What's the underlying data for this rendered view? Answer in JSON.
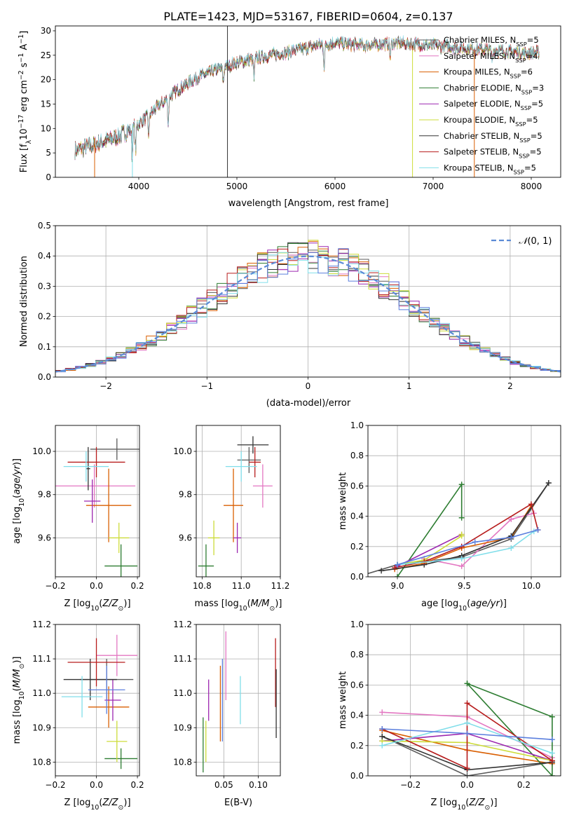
{
  "figure_title": "PLATE=1423, MJD=53167, FIBERID=0604, z=0.137",
  "colors": {
    "Chabrier MILES": "#5b5b5b",
    "Salpeter MILES": "#e377c2",
    "Kroupa MILES": "#d95f02",
    "Chabrier ELODIE": "#2e7d32",
    "Salpeter ELODIE": "#9c27b0",
    "Kroupa ELODIE": "#cddc39",
    "Chabrier STELIB": "#333333",
    "Salpeter STELIB": "#b71c1c",
    "Kroupa STELIB": "#80deea",
    "gauss": "#5b8bd6",
    "blue": "#5b7fde"
  },
  "legend_spectrum": [
    {
      "name": "Chabrier MILES",
      "nssp": "5"
    },
    {
      "name": "Salpeter MILES",
      "nssp": "4"
    },
    {
      "name": "Kroupa MILES",
      "nssp": "6"
    },
    {
      "name": "Chabrier ELODIE",
      "nssp": "3"
    },
    {
      "name": "Salpeter ELODIE",
      "nssp": "5"
    },
    {
      "name": "Kroupa ELODIE",
      "nssp": "5"
    },
    {
      "name": "Chabrier STELIB",
      "nssp": "5"
    },
    {
      "name": "Salpeter STELIB",
      "nssp": "5"
    },
    {
      "name": "Kroupa STELIB",
      "nssp": "5"
    }
  ],
  "chart_data": [
    {
      "id": "spectrum",
      "type": "line",
      "title": "PLATE=1423, MJD=53167, FIBERID=0604, z=0.137",
      "xlabel": "wavelength [Angstrom, rest frame]",
      "ylabel_main": "Flux [f",
      "ylabel_tail": "10",
      "xlim": [
        3150,
        8300
      ],
      "ylim": [
        0,
        31
      ],
      "xticks": [
        4000,
        5000,
        6000,
        7000,
        8000
      ],
      "yticks": [
        0,
        5,
        10,
        15,
        20,
        25,
        30
      ],
      "continuum": [
        [
          3350,
          5.5
        ],
        [
          3600,
          7.0
        ],
        [
          3800,
          8.5
        ],
        [
          4000,
          11.0
        ],
        [
          4200,
          14.5
        ],
        [
          4400,
          18.0
        ],
        [
          4600,
          20.5
        ],
        [
          4800,
          22.0
        ],
        [
          5000,
          23.5
        ],
        [
          5200,
          24.5
        ],
        [
          5500,
          25.5
        ],
        [
          5800,
          27.0
        ],
        [
          6000,
          27.5
        ],
        [
          6300,
          27.0
        ],
        [
          6600,
          27.5
        ],
        [
          7000,
          27.0
        ],
        [
          7300,
          26.5
        ],
        [
          7600,
          26.0
        ],
        [
          7900,
          25.5
        ],
        [
          8080,
          25.5
        ]
      ],
      "absorption_dips": [
        [
          3933,
          6
        ],
        [
          3968,
          5
        ],
        [
          4101,
          4
        ],
        [
          4300,
          5
        ],
        [
          4861,
          3
        ],
        [
          5175,
          4
        ],
        [
          5890,
          5
        ],
        [
          6563,
          3
        ],
        [
          7600,
          2
        ]
      ],
      "spikes": [
        [
          4904,
          0,
          31
        ],
        [
          6790,
          0,
          26
        ],
        [
          3935,
          0,
          11
        ],
        [
          7420,
          0,
          26
        ],
        [
          3550,
          0,
          8
        ]
      ]
    },
    {
      "id": "residuals",
      "type": "histogram",
      "xlabel": "(data-model)/error",
      "ylabel": "Normed distribution",
      "xlim": [
        -2.5,
        2.5
      ],
      "ylim": [
        0,
        0.5
      ],
      "xticks": [
        -2,
        -1,
        0,
        1,
        2
      ],
      "yticks": [
        0.0,
        0.1,
        0.2,
        0.3,
        0.4,
        0.5
      ],
      "bin_width": 0.1,
      "reference_curve": "N(0,1)",
      "legend": "N(0,1)"
    },
    {
      "id": "age-vs-Z",
      "type": "scatter",
      "xlabel": "Z [log",
      "ylabel": "age  [log",
      "xlim": [
        -0.2,
        0.21
      ],
      "ylim": [
        9.42,
        10.12
      ],
      "xticks": [
        -0.2,
        0.0,
        0.2
      ],
      "yticks": [
        9.6,
        9.8,
        10.0
      ],
      "points": [
        {
          "series": "Chabrier MILES",
          "x": 0.1,
          "xerr": 0.13,
          "y": 10.01,
          "yerr": 0.05
        },
        {
          "series": "Salpeter MILES",
          "x": -0.01,
          "xerr": 0.2,
          "y": 9.84,
          "yerr": 0.1
        },
        {
          "series": "Kroupa MILES",
          "x": 0.06,
          "xerr": 0.11,
          "y": 9.75,
          "yerr": 0.17
        },
        {
          "series": "Chabrier ELODIE",
          "x": 0.12,
          "xerr": 0.08,
          "y": 9.47,
          "yerr": 0.1
        },
        {
          "series": "Salpeter ELODIE",
          "x": -0.02,
          "xerr": 0.04,
          "y": 9.77,
          "yerr": 0.1
        },
        {
          "series": "Kroupa ELODIE",
          "x": 0.11,
          "xerr": 0.05,
          "y": 9.6,
          "yerr": 0.07
        },
        {
          "series": "Chabrier STELIB",
          "x": -0.04,
          "xerr": 0.01,
          "y": 9.92,
          "yerr": 0.1
        },
        {
          "series": "Salpeter STELIB",
          "x": 0.0,
          "xerr": 0.14,
          "y": 9.95,
          "yerr": 0.07
        },
        {
          "series": "Kroupa STELIB",
          "x": -0.05,
          "xerr": 0.11,
          "y": 9.93,
          "yerr": 0.07
        }
      ]
    },
    {
      "id": "age-vs-mass",
      "type": "scatter",
      "xlabel": "mass [log",
      "xlim": [
        10.77,
        11.2
      ],
      "ylim": [
        9.42,
        10.12
      ],
      "xticks": [
        10.8,
        11.0,
        11.2
      ],
      "yticks": [
        9.6,
        9.8,
        10.0
      ],
      "points": [
        {
          "series": "Chabrier MILES",
          "x": 11.04,
          "xerr": 0.06,
          "y": 9.96,
          "yerr": 0.06
        },
        {
          "series": "Salpeter MILES",
          "x": 11.11,
          "xerr": 0.05,
          "y": 9.84,
          "yerr": 0.1
        },
        {
          "series": "Kroupa MILES",
          "x": 10.96,
          "xerr": 0.05,
          "y": 9.75,
          "yerr": 0.17
        },
        {
          "series": "Chabrier ELODIE",
          "x": 10.82,
          "xerr": 0.04,
          "y": 9.47,
          "yerr": 0.1
        },
        {
          "series": "Salpeter ELODIE",
          "x": 10.98,
          "xerr": 0.02,
          "y": 9.6,
          "yerr": 0.07
        },
        {
          "series": "Kroupa ELODIE",
          "x": 10.86,
          "xerr": 0.03,
          "y": 9.6,
          "yerr": 0.08
        },
        {
          "series": "Chabrier STELIB",
          "x": 11.06,
          "xerr": 0.08,
          "y": 10.03,
          "yerr": 0.04
        },
        {
          "series": "Salpeter STELIB",
          "x": 11.07,
          "xerr": 0.03,
          "y": 9.95,
          "yerr": 0.07
        },
        {
          "series": "Kroupa STELIB",
          "x": 11.0,
          "xerr": 0.08,
          "y": 9.93,
          "yerr": 0.07
        }
      ]
    },
    {
      "id": "mass-weight-vs-age",
      "type": "line",
      "xlabel": "age  [log",
      "ylabel": "mass weight",
      "xlim": [
        8.78,
        10.22
      ],
      "ylim": [
        0,
        1
      ],
      "xticks": [
        9.0,
        9.5,
        10.0
      ],
      "yticks": [
        0.0,
        0.2,
        0.4,
        0.6,
        0.8,
        1.0
      ],
      "series": [
        {
          "name": "Chabrier MILES",
          "x": [
            8.7,
            9.0,
            9.48,
            9.85,
            10.13
          ],
          "y": [
            0.0,
            0.08,
            0.13,
            0.25,
            0.62
          ]
        },
        {
          "name": "Salpeter MILES",
          "x": [
            9.2,
            9.48,
            9.85,
            10.02
          ],
          "y": [
            0.12,
            0.07,
            0.38,
            0.42
          ]
        },
        {
          "name": "Kroupa MILES",
          "x": [
            8.98,
            9.2,
            9.48,
            9.85,
            10.0
          ],
          "y": [
            0.05,
            0.09,
            0.19,
            0.26,
            0.47
          ]
        },
        {
          "name": "Chabrier ELODIE",
          "x": [
            9.0,
            9.48,
            9.48
          ],
          "y": [
            0.0,
            0.61,
            0.39
          ]
        },
        {
          "name": "Salpeter ELODIE",
          "x": [
            9.0,
            9.48
          ],
          "y": [
            0.07,
            0.28
          ]
        },
        {
          "name": "Kroupa ELODIE",
          "x": [
            9.0,
            9.2,
            9.48,
            9.48
          ],
          "y": [
            0.08,
            0.11,
            0.27,
            0.28
          ]
        },
        {
          "name": "Chabrier STELIB",
          "x": [
            8.88,
            9.2,
            9.48,
            9.85,
            10.13
          ],
          "y": [
            0.04,
            0.08,
            0.14,
            0.27,
            0.62
          ]
        },
        {
          "name": "Salpeter STELIB",
          "x": [
            8.98,
            9.2,
            9.48,
            10.0,
            10.05
          ],
          "y": [
            0.06,
            0.1,
            0.2,
            0.48,
            0.31
          ]
        },
        {
          "name": "Kroupa STELIB",
          "x": [
            9.0,
            9.48,
            9.85,
            10.02
          ],
          "y": [
            0.08,
            0.12,
            0.19,
            0.3
          ]
        },
        {
          "name": "blue",
          "x": [
            9.0,
            9.58,
            9.85,
            10.05
          ],
          "y": [
            0.08,
            0.23,
            0.26,
            0.31
          ]
        }
      ]
    },
    {
      "id": "mass-vs-Z",
      "type": "scatter",
      "xlabel": "Z [log",
      "ylabel": "mass [log",
      "xlim": [
        -0.2,
        0.21
      ],
      "ylim": [
        10.76,
        11.2
      ],
      "xticks": [
        -0.2,
        0.0,
        0.2
      ],
      "yticks": [
        10.8,
        10.9,
        11.0,
        11.1,
        11.2
      ],
      "points": [
        {
          "series": "Chabrier MILES",
          "x": 0.05,
          "xerr": 0.13,
          "y": 11.04,
          "yerr": 0.06
        },
        {
          "series": "Salpeter MILES",
          "x": 0.1,
          "xerr": 0.1,
          "y": 11.11,
          "yerr": 0.06
        },
        {
          "series": "Kroupa MILES",
          "x": 0.06,
          "xerr": 0.1,
          "y": 10.96,
          "yerr": 0.06
        },
        {
          "series": "Chabrier ELODIE",
          "x": 0.12,
          "xerr": 0.08,
          "y": 10.81,
          "yerr": 0.03
        },
        {
          "series": "Salpeter ELODIE",
          "x": 0.08,
          "xerr": 0.04,
          "y": 10.98,
          "yerr": 0.06
        },
        {
          "series": "Kroupa ELODIE",
          "x": 0.1,
          "xerr": 0.05,
          "y": 10.86,
          "yerr": 0.06
        },
        {
          "series": "Chabrier STELIB",
          "x": -0.03,
          "xerr": 0.13,
          "y": 11.04,
          "yerr": 0.06
        },
        {
          "series": "Salpeter STELIB",
          "x": 0.0,
          "xerr": 0.14,
          "y": 11.09,
          "yerr": 0.07
        },
        {
          "series": "Kroupa STELIB",
          "x": -0.07,
          "xerr": 0.1,
          "y": 10.99,
          "yerr": 0.06
        },
        {
          "series": "blue",
          "x": 0.05,
          "xerr": 0.09,
          "y": 11.01,
          "yerr": 0.07
        }
      ]
    },
    {
      "id": "mass-vs-EBV",
      "type": "scatter",
      "xlabel": "E(B-V)",
      "xlim": [
        0.01,
        0.132
      ],
      "ylim": [
        10.76,
        11.2
      ],
      "xticks": [
        0.05,
        0.1
      ],
      "xticklabels": [
        "0.05",
        "0.10"
      ],
      "yticks": [
        10.8,
        10.9,
        11.0,
        11.1,
        11.2
      ],
      "points": [
        {
          "series": "Chabrier ELODIE",
          "x": 0.02,
          "y": 10.85,
          "yerr": 0.08
        },
        {
          "series": "Kroupa ELODIE",
          "x": 0.024,
          "y": 10.86,
          "yerr": 0.06
        },
        {
          "series": "Salpeter ELODIE",
          "x": 0.028,
          "y": 10.98,
          "yerr": 0.06
        },
        {
          "series": "Kroupa MILES",
          "x": 0.045,
          "y": 10.97,
          "yerr": 0.11
        },
        {
          "series": "blue",
          "x": 0.048,
          "y": 10.98,
          "yerr": 0.12
        },
        {
          "series": "Salpeter MILES",
          "x": 0.053,
          "y": 11.08,
          "yerr": 0.1
        },
        {
          "series": "Kroupa STELIB",
          "x": 0.074,
          "y": 10.98,
          "yerr": 0.07
        },
        {
          "series": "Salpeter STELIB",
          "x": 0.125,
          "y": 11.06,
          "yerr": 0.1
        },
        {
          "series": "Chabrier STELIB",
          "x": 0.126,
          "y": 10.97,
          "yerr": 0.1
        }
      ]
    },
    {
      "id": "mass-weight-vs-Z",
      "type": "line",
      "xlabel": "Z [log",
      "ylabel": "mass weight",
      "xlim": [
        -0.35,
        0.33
      ],
      "ylim": [
        0,
        1
      ],
      "xticks": [
        -0.2,
        0.0,
        0.2
      ],
      "yticks": [
        0.0,
        0.2,
        0.4,
        0.6,
        0.8,
        1.0
      ],
      "series": [
        {
          "name": "Chabrier MILES",
          "x": [
            -0.3,
            0.0,
            0.3
          ],
          "y": [
            0.26,
            0.0,
            0.09
          ]
        },
        {
          "name": "Salpeter MILES",
          "x": [
            -0.3,
            0.0,
            0.3
          ],
          "y": [
            0.42,
            0.39,
            0.12
          ]
        },
        {
          "name": "Kroupa MILES",
          "x": [
            -0.3,
            0.0,
            0.3
          ],
          "y": [
            0.3,
            0.17,
            0.08
          ]
        },
        {
          "name": "Chabrier ELODIE",
          "x": [
            0.0,
            0.3,
            0.3,
            0.0
          ],
          "y": [
            0.61,
            0.39,
            0.0,
            0.61
          ]
        },
        {
          "name": "Salpeter ELODIE",
          "x": [
            -0.3,
            0.0,
            0.3
          ],
          "y": [
            0.23,
            0.28,
            0.1
          ]
        },
        {
          "name": "Kroupa ELODIE",
          "x": [
            -0.3,
            0.0,
            0.3
          ],
          "y": [
            0.23,
            0.22,
            0.1
          ]
        },
        {
          "name": "Chabrier STELIB",
          "x": [
            -0.3,
            0.0,
            0.3
          ],
          "y": [
            0.26,
            0.04,
            0.09
          ]
        },
        {
          "name": "Salpeter STELIB",
          "x": [
            -0.3,
            0.0,
            0.0,
            0.3
          ],
          "y": [
            0.31,
            0.05,
            0.48,
            0.1
          ]
        },
        {
          "name": "Kroupa STELIB",
          "x": [
            -0.3,
            0.0,
            0.3
          ],
          "y": [
            0.2,
            0.35,
            0.15
          ]
        },
        {
          "name": "blue",
          "x": [
            -0.3,
            0.0,
            0.3
          ],
          "y": [
            0.31,
            0.28,
            0.24
          ]
        }
      ]
    }
  ]
}
